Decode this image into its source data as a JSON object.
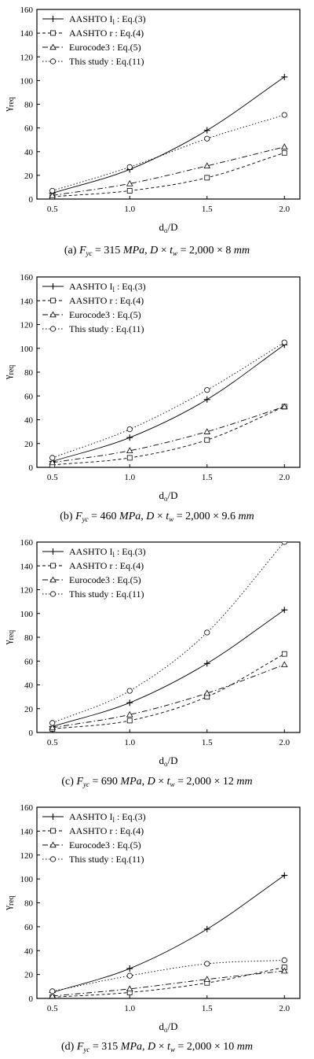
{
  "chart_data": [
    {
      "type": "line",
      "caption": "(a) F_yc = 315 MPa, D × t_w = 2,000 × 8 mm",
      "caption_parts": {
        "label": "(a)",
        "fyc": "315",
        "fyc_unit": "MPa",
        "dims": "2,000 × 8",
        "dims_unit": "mm"
      },
      "xlabel_main": "d",
      "xlabel_sub": "o",
      "xlabel_tail": "/D",
      "ylabel_main": "γ",
      "ylabel_sub": "req",
      "ylim": [
        0,
        160
      ],
      "xlim": [
        0.4,
        2.1
      ],
      "x_ticks": [
        "0.5",
        "1.0",
        "1.5",
        "2.0"
      ],
      "y_ticks": [
        "0",
        "20",
        "40",
        "60",
        "80",
        "100",
        "120",
        "140",
        "160"
      ],
      "x": [
        0.5,
        1.0,
        1.5,
        2.0
      ],
      "series": [
        {
          "name": "AASHTO I_l : Eq.(3)",
          "values": [
            5,
            25,
            58,
            103
          ]
        },
        {
          "name": "AASHTO r : Eq.(4)",
          "values": [
            2,
            7,
            18,
            39
          ]
        },
        {
          "name": "Eurocode3 : Eq.(5)",
          "values": [
            3,
            13,
            28,
            44
          ]
        },
        {
          "name": "This study : Eq.(11)",
          "values": [
            7,
            27,
            51,
            71
          ]
        }
      ]
    },
    {
      "type": "line",
      "caption": "(b) F_yc = 460 MPa, D × t_w = 2,000 × 9.6 mm",
      "caption_parts": {
        "label": "(b)",
        "fyc": "460",
        "fyc_unit": "MPa",
        "dims": "2,000 × 9.6",
        "dims_unit": "mm"
      },
      "xlabel_main": "d",
      "xlabel_sub": "o",
      "xlabel_tail": "/D",
      "ylabel_main": "γ",
      "ylabel_sub": "req",
      "ylim": [
        0,
        160
      ],
      "xlim": [
        0.4,
        2.1
      ],
      "x_ticks": [
        "0.5",
        "1.0",
        "1.5",
        "2.0"
      ],
      "y_ticks": [
        "0",
        "20",
        "40",
        "60",
        "80",
        "100",
        "120",
        "140",
        "160"
      ],
      "x": [
        0.5,
        1.0,
        1.5,
        2.0
      ],
      "series": [
        {
          "name": "AASHTO I_l : Eq.(3)",
          "values": [
            5,
            25,
            57,
            103
          ]
        },
        {
          "name": "AASHTO r : Eq.(4)",
          "values": [
            2,
            8,
            23,
            51
          ]
        },
        {
          "name": "Eurocode3 : Eq.(5)",
          "values": [
            4,
            14,
            30,
            51
          ]
        },
        {
          "name": "This study : Eq.(11)",
          "values": [
            8,
            32,
            65,
            105
          ]
        }
      ]
    },
    {
      "type": "line",
      "caption": "(c) F_yc = 690 MPa, D × t_w = 2,000 × 12 mm",
      "caption_parts": {
        "label": "(c)",
        "fyc": "690",
        "fyc_unit": "MPa",
        "dims": "2,000 × 12",
        "dims_unit": "mm"
      },
      "xlabel_main": "d",
      "xlabel_sub": "o",
      "xlabel_tail": "/D",
      "ylabel_main": "γ",
      "ylabel_sub": "req",
      "ylim": [
        0,
        160
      ],
      "xlim": [
        0.4,
        2.1
      ],
      "x_ticks": [
        "0.5",
        "1.0",
        "1.5",
        "2.0"
      ],
      "y_ticks": [
        "0",
        "20",
        "40",
        "60",
        "80",
        "100",
        "120",
        "140",
        "160"
      ],
      "x": [
        0.5,
        1.0,
        1.5,
        2.0
      ],
      "series": [
        {
          "name": "AASHTO I_l : Eq.(3)",
          "values": [
            5,
            25,
            58,
            103
          ]
        },
        {
          "name": "AASHTO r : Eq.(4)",
          "values": [
            3,
            10,
            30,
            66
          ]
        },
        {
          "name": "Eurocode3 : Eq.(5)",
          "values": [
            4,
            15,
            33,
            57
          ]
        },
        {
          "name": "This study : Eq.(11)",
          "values": [
            8,
            35,
            84,
            160
          ]
        }
      ]
    },
    {
      "type": "line",
      "caption": "(d) F_yc = 315 MPa, D × t_w = 2,000 × 10 mm",
      "caption_parts": {
        "label": "(d)",
        "fyc": "315",
        "fyc_unit": "MPa",
        "dims": "2,000 × 10",
        "dims_unit": "mm"
      },
      "xlabel_main": "d",
      "xlabel_sub": "o",
      "xlabel_tail": "/D",
      "ylabel_main": "γ",
      "ylabel_sub": "req",
      "ylim": [
        0,
        160
      ],
      "xlim": [
        0.4,
        2.1
      ],
      "x_ticks": [
        "0.5",
        "1.0",
        "1.5",
        "2.0"
      ],
      "y_ticks": [
        "0",
        "20",
        "40",
        "60",
        "80",
        "100",
        "120",
        "140",
        "160"
      ],
      "x": [
        0.5,
        1.0,
        1.5,
        2.0
      ],
      "series": [
        {
          "name": "AASHTO I_l : Eq.(3)",
          "values": [
            5,
            25,
            58,
            103
          ]
        },
        {
          "name": "AASHTO r : Eq.(4)",
          "values": [
            1,
            5,
            13,
            26
          ]
        },
        {
          "name": "Eurocode3 : Eq.(5)",
          "values": [
            2,
            8,
            16,
            23
          ]
        },
        {
          "name": "This study : Eq.(11)",
          "values": [
            6,
            19,
            29,
            32
          ]
        }
      ]
    }
  ],
  "legend_entries": [
    {
      "text": "AASHTO I",
      "sub": "l",
      "tail": " : Eq.(3)"
    },
    {
      "text": "AASHTO r : Eq.(4)",
      "sub": "",
      "tail": ""
    },
    {
      "text": "Eurocode3 : Eq.(5)",
      "sub": "",
      "tail": ""
    },
    {
      "text": "This study : Eq.(11)",
      "sub": "",
      "tail": ""
    }
  ],
  "series_styles": [
    {
      "dash": "",
      "marker": "plus",
      "color": "#000000"
    },
    {
      "dash": "4,3",
      "marker": "square",
      "color": "#000000"
    },
    {
      "dash": "7,3,1.5,3",
      "marker": "triangle",
      "color": "#000000"
    },
    {
      "dash": "1.5,2.5",
      "marker": "circle",
      "color": "#000000"
    }
  ]
}
